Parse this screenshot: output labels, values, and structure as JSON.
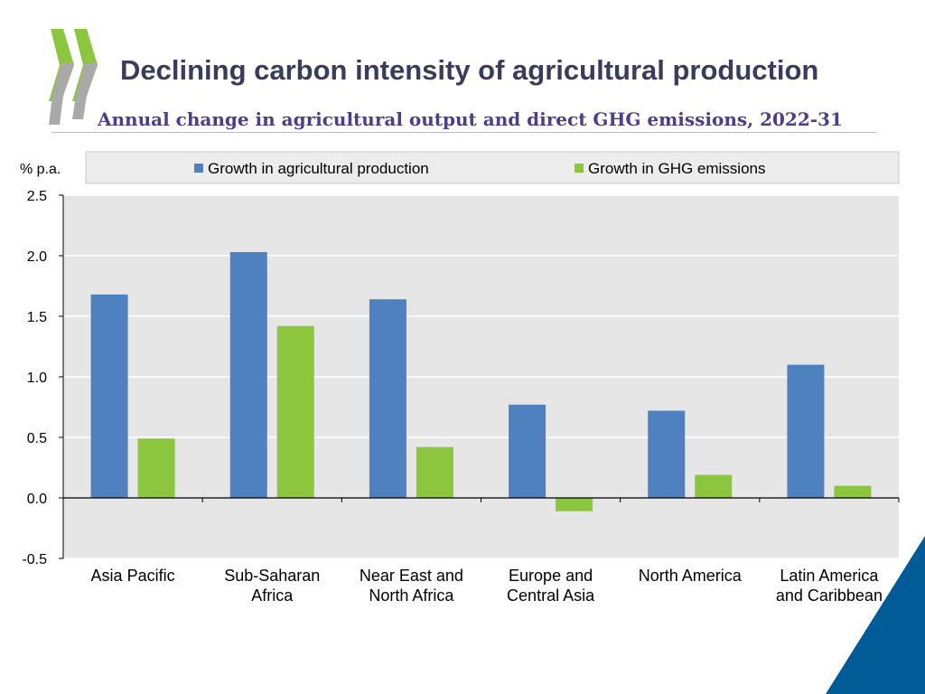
{
  "slide": {
    "title": "Declining carbon intensity of agricultural production",
    "subtitle": "Annual change in agricultural output and direct GHG emissions, 2022-31",
    "logo_icon": "oecd-chevron-logo-icon",
    "corner_icon": "blue-corner-triangle-icon",
    "colors": {
      "title": "#3b3b5c",
      "subtitle": "#4a3f8c",
      "logo": "#8cc63f",
      "corner": "#005b97"
    }
  },
  "chart_data": {
    "type": "bar",
    "title": "Annual change in agricultural output and direct GHG emissions, 2022-31",
    "ylabel": "% p.a.",
    "xlabel": "",
    "ylim": [
      -0.5,
      2.5
    ],
    "yticks": [
      "2.5",
      "2.0",
      "1.5",
      "1.0",
      "0.5",
      "0.0",
      "-0.5"
    ],
    "ytick_values": [
      2.5,
      2.0,
      1.5,
      1.0,
      0.5,
      0.0,
      -0.5
    ],
    "grid": true,
    "legend_position": "top",
    "categories": [
      [
        "Asia Pacific"
      ],
      [
        "Sub-Saharan",
        "Africa"
      ],
      [
        "Near East and",
        "North Africa"
      ],
      [
        "Europe and",
        "Central Asia"
      ],
      [
        "North America"
      ],
      [
        "Latin America",
        "and Caribbean"
      ]
    ],
    "series": [
      {
        "name": "Growth in agricultural production",
        "color": "#4f81c0",
        "values": [
          1.68,
          2.03,
          1.64,
          0.77,
          0.72,
          1.1
        ]
      },
      {
        "name": "Growth in GHG emissions",
        "color": "#8cc63f",
        "values": [
          0.49,
          1.42,
          0.42,
          -0.11,
          0.19,
          0.1
        ]
      }
    ]
  }
}
